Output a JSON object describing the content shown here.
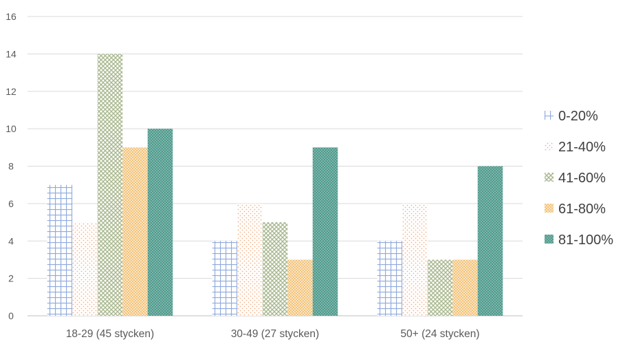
{
  "chart_data": {
    "type": "bar",
    "categories": [
      "18-29 (45 stycken)",
      "30-49 (27 stycken)",
      "50+ (24 stycken)"
    ],
    "series": [
      {
        "name": "0-20%",
        "values": [
          7,
          4,
          4
        ],
        "color": "#8faadc",
        "pattern": "grid"
      },
      {
        "name": "21-40%",
        "values": [
          5,
          6,
          6
        ],
        "color": "#f4b183",
        "pattern": "dots"
      },
      {
        "name": "41-60%",
        "values": [
          14,
          5,
          3
        ],
        "color": "#a9b88f",
        "pattern": "diamond-lattice"
      },
      {
        "name": "61-80%",
        "values": [
          9,
          3,
          3
        ],
        "color": "#f2c27c",
        "pattern": "dense-dots"
      },
      {
        "name": "81-100%",
        "values": [
          10,
          9,
          8
        ],
        "color": "#4e9a8c",
        "pattern": "dense-lattice"
      }
    ],
    "ylim": [
      0,
      16
    ],
    "yticks": [
      "0",
      "2",
      "4",
      "6",
      "8",
      "10",
      "12",
      "14",
      "16"
    ],
    "grid": true,
    "legend_position": "right",
    "title": "",
    "xlabel": "",
    "ylabel": ""
  }
}
